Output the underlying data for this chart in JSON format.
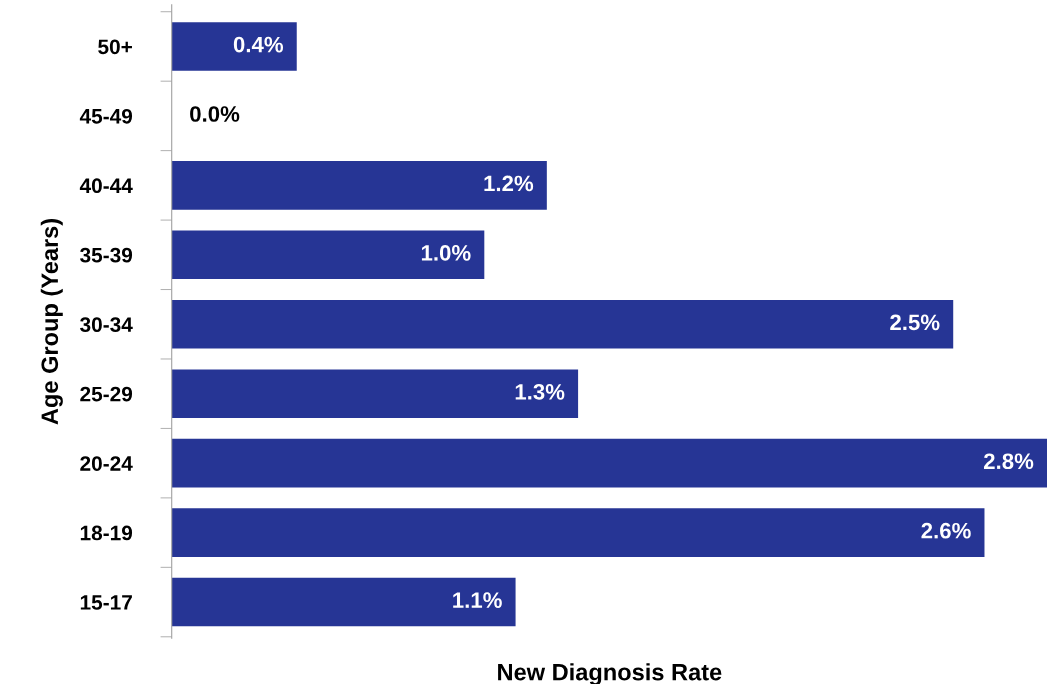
{
  "chart_data": {
    "type": "bar",
    "orientation": "horizontal",
    "categories": [
      "50+",
      "45-49",
      "40-44",
      "35-39",
      "30-34",
      "25-29",
      "20-24",
      "18-19",
      "15-17"
    ],
    "values": [
      0.4,
      0.0,
      1.2,
      1.0,
      2.5,
      1.3,
      2.8,
      2.6,
      1.1
    ],
    "value_labels": [
      "0.4%",
      "0.0%",
      "1.2%",
      "1.0%",
      "2.5%",
      "1.3%",
      "2.8%",
      "2.6%",
      "1.1%"
    ],
    "color": "#263595",
    "xlabel": "New Diagnosis Rate",
    "ylabel": "Age Group (Years)",
    "tick_labels": "y",
    "grid": false
  }
}
